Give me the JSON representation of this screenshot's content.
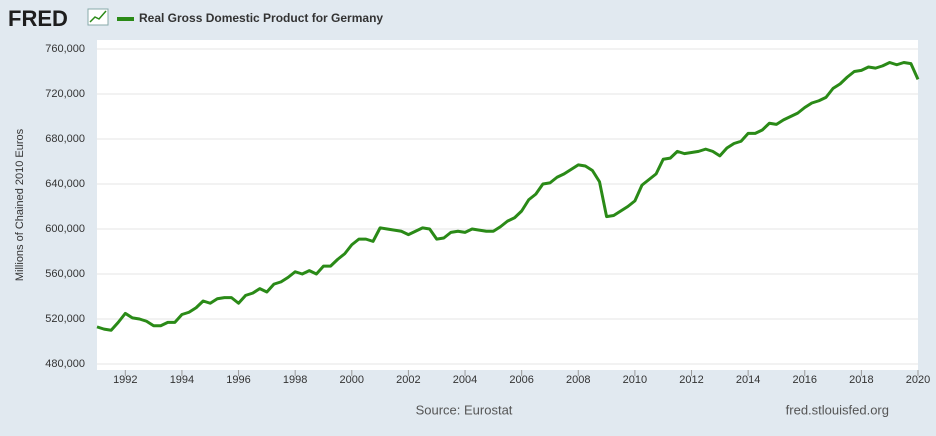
{
  "chart_data": {
    "type": "line",
    "brand": "FRED",
    "title": "Real Gross Domestic Product for Germany",
    "ylabel": "Millions of Chained 2010 Euros",
    "source": "Source: Eurostat",
    "site": "fred.stlouisfed.org",
    "x": [
      1991,
      1991.25,
      1991.5,
      1991.75,
      1992,
      1992.25,
      1992.5,
      1992.75,
      1993,
      1993.25,
      1993.5,
      1993.75,
      1994,
      1994.25,
      1994.5,
      1994.75,
      1995,
      1995.25,
      1995.5,
      1995.75,
      1996,
      1996.25,
      1996.5,
      1996.75,
      1997,
      1997.25,
      1997.5,
      1997.75,
      1998,
      1998.25,
      1998.5,
      1998.75,
      1999,
      1999.25,
      1999.5,
      1999.75,
      2000,
      2000.25,
      2000.5,
      2000.75,
      2001,
      2001.25,
      2001.5,
      2001.75,
      2002,
      2002.25,
      2002.5,
      2002.75,
      2003,
      2003.25,
      2003.5,
      2003.75,
      2004,
      2004.25,
      2004.5,
      2004.75,
      2005,
      2005.25,
      2005.5,
      2005.75,
      2006,
      2006.25,
      2006.5,
      2006.75,
      2007,
      2007.25,
      2007.5,
      2007.75,
      2008,
      2008.25,
      2008.5,
      2008.75,
      2009,
      2009.25,
      2009.5,
      2009.75,
      2010,
      2010.25,
      2010.5,
      2010.75,
      2011,
      2011.25,
      2011.5,
      2011.75,
      2012,
      2012.25,
      2012.5,
      2012.75,
      2013,
      2013.25,
      2013.5,
      2013.75,
      2014,
      2014.25,
      2014.5,
      2014.75,
      2015,
      2015.25,
      2015.5,
      2015.75,
      2016,
      2016.25,
      2016.5,
      2016.75,
      2017,
      2017.25,
      2017.5,
      2017.75,
      2018,
      2018.25,
      2018.5,
      2018.75,
      2019,
      2019.25,
      2019.5,
      2019.75,
      2020
    ],
    "series": [
      {
        "name": "Real Gross Domestic Product for Germany",
        "color": "#2a8a17",
        "values": [
          513000,
          511000,
          510000,
          517000,
          525000,
          521000,
          520000,
          518000,
          514000,
          514000,
          517000,
          517000,
          524000,
          526000,
          530000,
          536000,
          534000,
          538000,
          539000,
          539000,
          534000,
          541000,
          543000,
          547000,
          544000,
          551000,
          553000,
          557000,
          562000,
          560000,
          563000,
          560000,
          567000,
          567000,
          573000,
          578000,
          586000,
          591000,
          591000,
          589000,
          601000,
          600000,
          599000,
          598000,
          595000,
          598000,
          601000,
          600000,
          591000,
          592000,
          597000,
          598000,
          597000,
          600000,
          599000,
          598000,
          598000,
          602000,
          607000,
          610000,
          616000,
          626000,
          631000,
          640000,
          641000,
          646000,
          649000,
          653000,
          657000,
          656000,
          652000,
          642000,
          611000,
          612000,
          616000,
          620000,
          625000,
          639000,
          644000,
          649000,
          662000,
          663000,
          669000,
          667000,
          668000,
          669000,
          671000,
          669000,
          665000,
          672000,
          676000,
          678000,
          685000,
          685000,
          688000,
          694000,
          693000,
          697000,
          700000,
          703000,
          708000,
          712000,
          714000,
          717000,
          725000,
          729000,
          735000,
          740000,
          741000,
          744000,
          743000,
          745000,
          748000,
          746000,
          748000,
          747000,
          733000
        ]
      }
    ],
    "xlim": [
      1991,
      2020
    ],
    "xticks": [
      1992,
      1994,
      1996,
      1998,
      2000,
      2002,
      2004,
      2006,
      2008,
      2010,
      2012,
      2014,
      2016,
      2018,
      2020
    ],
    "ylim": [
      480000,
      760000
    ],
    "yticks": [
      {
        "value": 480000,
        "label": "480,000"
      },
      {
        "value": 520000,
        "label": "520,000"
      },
      {
        "value": 560000,
        "label": "560,000"
      },
      {
        "value": 600000,
        "label": "600,000"
      },
      {
        "value": 640000,
        "label": "640,000"
      },
      {
        "value": 680000,
        "label": "680,000"
      },
      {
        "value": 720000,
        "label": "720,000"
      },
      {
        "value": 760000,
        "label": "760,000"
      }
    ],
    "grid": true
  }
}
